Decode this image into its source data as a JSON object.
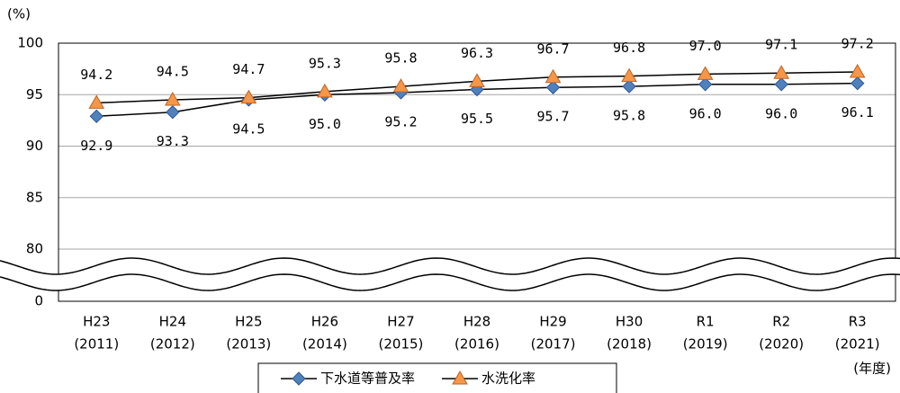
{
  "chart_data": {
    "type": "line",
    "y_unit": "(%)",
    "x_unit": "(年度)",
    "categories": [
      [
        "H23",
        "(2011)"
      ],
      [
        "H24",
        "(2012)"
      ],
      [
        "H25",
        "(2013)"
      ],
      [
        "H26",
        "(2014)"
      ],
      [
        "H27",
        "(2015)"
      ],
      [
        "H28",
        "(2016)"
      ],
      [
        "H29",
        "(2017)"
      ],
      [
        "H30",
        "(2018)"
      ],
      [
        "R1",
        "(2019)"
      ],
      [
        "R2",
        "(2020)"
      ],
      [
        "R3",
        "(2021)"
      ]
    ],
    "series": [
      {
        "name": "下水道等普及率",
        "color": "#4f81bd",
        "marker": "diamond",
        "values": [
          92.9,
          93.3,
          94.5,
          95.0,
          95.2,
          95.5,
          95.7,
          95.8,
          96.0,
          96.0,
          96.1
        ],
        "value_labels": [
          "92.9",
          "93.3",
          "94.5",
          "95.0",
          "95.2",
          "95.5",
          "95.7",
          "95.8",
          "96.0",
          "96.0",
          "96.1"
        ]
      },
      {
        "name": "水洗化率",
        "color": "#f79646",
        "marker": "triangle",
        "values": [
          94.2,
          94.5,
          94.7,
          95.3,
          95.8,
          96.3,
          96.7,
          96.8,
          97.0,
          97.1,
          97.2
        ],
        "value_labels": [
          "94.2",
          "94.5",
          "94.7",
          "95.3",
          "95.8",
          "96.3",
          "96.7",
          "96.8",
          "97.0",
          "97.1",
          "97.2"
        ]
      }
    ],
    "ylim": [
      0,
      100
    ],
    "axis_break": [
      0,
      80
    ],
    "yticks": [
      0,
      80,
      85,
      90,
      95,
      100
    ],
    "grid": true,
    "legend": "bottom"
  }
}
